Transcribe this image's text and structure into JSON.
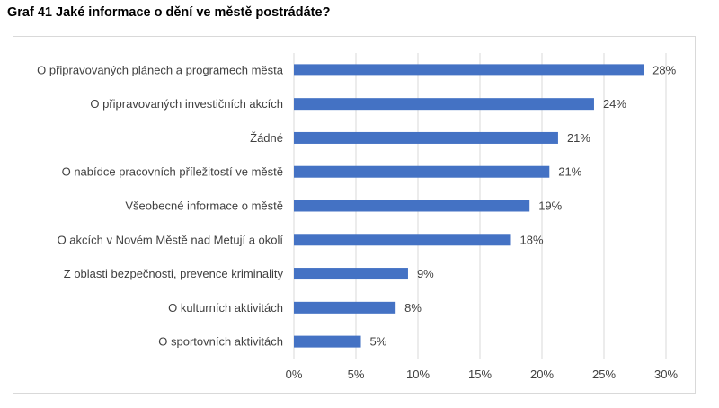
{
  "title": "Graf 41 Jaké informace o dění ve městě postrádáte?",
  "chart_data": {
    "type": "bar",
    "orientation": "horizontal",
    "categories": [
      "O připravovaných plánech a programech města",
      "O připravovaných investičních akcích",
      "Žádné",
      "O nabídce pracovních příležitostí ve městě",
      "Všeobecné informace o městě",
      "O akcích v Novém Městě nad Metují a okolí",
      "Z oblasti bezpečnosti, prevence kriminality",
      "O kulturních aktivitách",
      "O sportovních aktivitách"
    ],
    "values": [
      28.2,
      24.2,
      21.3,
      20.6,
      19.0,
      17.5,
      9.2,
      8.2,
      5.4
    ],
    "data_labels": [
      "28%",
      "24%",
      "21%",
      "21%",
      "19%",
      "18%",
      "9%",
      "8%",
      "5%"
    ],
    "xlim": [
      0,
      30
    ],
    "xticks": [
      0,
      5,
      10,
      15,
      20,
      25,
      30
    ],
    "xtick_labels": [
      "0%",
      "5%",
      "10%",
      "15%",
      "20%",
      "25%",
      "30%"
    ],
    "xlabel": "",
    "ylabel": "",
    "grid": "vertical",
    "legend": "none",
    "bar_color": "#4472c4",
    "grid_color": "#d9d9d9"
  }
}
